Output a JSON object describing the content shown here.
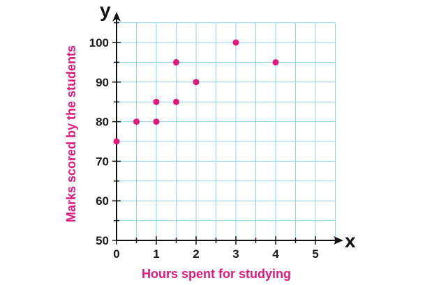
{
  "chart_data": {
    "type": "scatter",
    "title": "",
    "xlabel": "Hours spent for studying",
    "ylabel": "Marks scored by the students",
    "x_axis_letter": "x",
    "y_axis_letter": "y",
    "xlim": [
      0,
      5.5
    ],
    "ylim": [
      50,
      102
    ],
    "x_ticks": [
      0,
      1,
      2,
      3,
      4,
      5
    ],
    "x_tick_labels": [
      "0",
      "1",
      "2",
      "3",
      "4",
      "5"
    ],
    "y_ticks": [
      50,
      60,
      70,
      80,
      90,
      100
    ],
    "y_tick_labels": [
      "50",
      "60",
      "70",
      "80",
      "90",
      "100"
    ],
    "grid": true,
    "grid_minor_step": {
      "x": 0.5,
      "y": 5
    },
    "series": [
      {
        "points": [
          {
            "x": 0,
            "y": 75
          },
          {
            "x": 0.5,
            "y": 80
          },
          {
            "x": 1,
            "y": 80
          },
          {
            "x": 1,
            "y": 85
          },
          {
            "x": 1.5,
            "y": 85
          },
          {
            "x": 1.5,
            "y": 95
          },
          {
            "x": 2,
            "y": 90
          },
          {
            "x": 3,
            "y": 100
          },
          {
            "x": 4,
            "y": 95
          }
        ]
      }
    ],
    "colors": {
      "points": "#e0197d",
      "axis_titles": "#e0197d",
      "grid": "#8fd3f4",
      "axes": "#111111"
    }
  }
}
